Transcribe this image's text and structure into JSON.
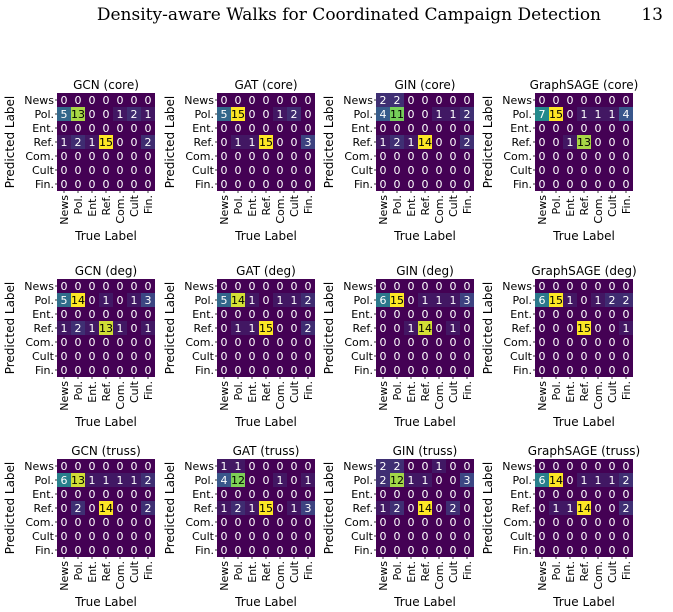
{
  "header": {
    "title": "Density-aware Walks for Coordinated Campaign Detection",
    "page_number": "13"
  },
  "chart_data": {
    "type": "heatmap",
    "layout": "3 rows x 4 columns of confusion matrices",
    "labels": [
      "News",
      "Pol.",
      "Ent.",
      "Ref.",
      "Com.",
      "Cult",
      "Fin."
    ],
    "xlabel": "True Label",
    "ylabel": "Predicted Label",
    "colormap": "viridis",
    "colors": {
      "low": "#440154",
      "mid_low": "#3b528b",
      "mid": "#21918c",
      "mid_high": "#5ec962",
      "high": "#fde725",
      "dark_text": "#000000",
      "light_text": "#ffffff"
    },
    "panels": [
      {
        "title": "GCN (core)",
        "matrix": [
          [
            0,
            0,
            0,
            0,
            0,
            0,
            0
          ],
          [
            5,
            13,
            0,
            0,
            1,
            2,
            1
          ],
          [
            0,
            0,
            0,
            0,
            0,
            0,
            0
          ],
          [
            1,
            2,
            1,
            15,
            0,
            0,
            2
          ],
          [
            0,
            0,
            0,
            0,
            0,
            0,
            0
          ],
          [
            0,
            0,
            0,
            0,
            0,
            0,
            0
          ],
          [
            0,
            0,
            0,
            0,
            0,
            0,
            0
          ]
        ]
      },
      {
        "title": "GAT (core)",
        "matrix": [
          [
            0,
            0,
            0,
            0,
            0,
            0,
            0
          ],
          [
            5,
            15,
            0,
            0,
            1,
            2,
            0
          ],
          [
            0,
            0,
            0,
            0,
            0,
            0,
            0
          ],
          [
            0,
            1,
            1,
            15,
            0,
            0,
            3
          ],
          [
            0,
            0,
            0,
            0,
            0,
            0,
            0
          ],
          [
            0,
            0,
            0,
            0,
            0,
            0,
            0
          ],
          [
            0,
            0,
            0,
            0,
            0,
            0,
            0
          ]
        ]
      },
      {
        "title": "GIN (core)",
        "matrix": [
          [
            2,
            2,
            0,
            0,
            0,
            0,
            0
          ],
          [
            4,
            11,
            0,
            0,
            1,
            1,
            2
          ],
          [
            0,
            0,
            0,
            0,
            0,
            0,
            0
          ],
          [
            1,
            2,
            1,
            14,
            0,
            0,
            2
          ],
          [
            0,
            0,
            0,
            0,
            0,
            0,
            0
          ],
          [
            0,
            0,
            0,
            0,
            0,
            0,
            0
          ],
          [
            0,
            0,
            0,
            0,
            0,
            0,
            0
          ]
        ]
      },
      {
        "title": "GraphSAGE (core)",
        "matrix": [
          [
            0,
            0,
            0,
            0,
            0,
            0,
            0
          ],
          [
            7,
            15,
            0,
            1,
            1,
            1,
            4
          ],
          [
            0,
            0,
            0,
            0,
            0,
            0,
            0
          ],
          [
            0,
            0,
            1,
            13,
            0,
            0,
            0
          ],
          [
            0,
            0,
            0,
            0,
            0,
            0,
            0
          ],
          [
            0,
            0,
            0,
            0,
            0,
            0,
            0
          ],
          [
            0,
            0,
            0,
            0,
            0,
            0,
            0
          ]
        ]
      },
      {
        "title": "GCN (deg)",
        "matrix": [
          [
            0,
            0,
            0,
            0,
            0,
            0,
            0
          ],
          [
            5,
            14,
            0,
            1,
            0,
            1,
            3
          ],
          [
            0,
            0,
            0,
            0,
            0,
            0,
            0
          ],
          [
            1,
            2,
            1,
            13,
            1,
            0,
            1
          ],
          [
            0,
            0,
            0,
            0,
            0,
            0,
            0
          ],
          [
            0,
            0,
            0,
            0,
            0,
            0,
            0
          ],
          [
            0,
            0,
            0,
            0,
            0,
            0,
            0
          ]
        ]
      },
      {
        "title": "GAT (deg)",
        "matrix": [
          [
            0,
            0,
            0,
            0,
            0,
            0,
            0
          ],
          [
            5,
            14,
            1,
            0,
            1,
            1,
            2
          ],
          [
            0,
            0,
            0,
            0,
            0,
            0,
            0
          ],
          [
            0,
            1,
            1,
            15,
            0,
            0,
            2
          ],
          [
            0,
            0,
            0,
            0,
            0,
            0,
            0
          ],
          [
            0,
            0,
            0,
            0,
            0,
            0,
            0
          ],
          [
            0,
            0,
            0,
            0,
            0,
            0,
            0
          ]
        ]
      },
      {
        "title": "GIN (deg)",
        "matrix": [
          [
            0,
            0,
            0,
            0,
            0,
            0,
            0
          ],
          [
            6,
            15,
            0,
            1,
            1,
            1,
            3
          ],
          [
            0,
            0,
            0,
            0,
            0,
            0,
            0
          ],
          [
            0,
            0,
            1,
            14,
            0,
            1,
            0
          ],
          [
            0,
            0,
            0,
            0,
            0,
            0,
            0
          ],
          [
            0,
            0,
            0,
            0,
            0,
            0,
            0
          ],
          [
            0,
            0,
            0,
            0,
            0,
            0,
            0
          ]
        ]
      },
      {
        "title": "GraphSAGE (deg)",
        "matrix": [
          [
            0,
            0,
            0,
            0,
            0,
            0,
            0
          ],
          [
            6,
            15,
            1,
            0,
            1,
            2,
            2
          ],
          [
            0,
            0,
            0,
            0,
            0,
            0,
            0
          ],
          [
            0,
            0,
            0,
            15,
            0,
            0,
            1
          ],
          [
            0,
            0,
            0,
            0,
            0,
            0,
            0
          ],
          [
            0,
            0,
            0,
            0,
            0,
            0,
            0
          ],
          [
            0,
            0,
            0,
            0,
            0,
            0,
            0
          ]
        ]
      },
      {
        "title": "GCN (truss)",
        "matrix": [
          [
            0,
            0,
            0,
            0,
            0,
            0,
            0
          ],
          [
            6,
            13,
            1,
            1,
            1,
            1,
            2
          ],
          [
            0,
            0,
            0,
            0,
            0,
            0,
            0
          ],
          [
            0,
            2,
            0,
            14,
            0,
            0,
            2
          ],
          [
            0,
            0,
            0,
            0,
            0,
            0,
            0
          ],
          [
            0,
            0,
            0,
            0,
            0,
            0,
            0
          ],
          [
            0,
            0,
            0,
            0,
            0,
            0,
            0
          ]
        ]
      },
      {
        "title": "GAT (truss)",
        "matrix": [
          [
            1,
            1,
            0,
            0,
            0,
            0,
            0
          ],
          [
            4,
            12,
            0,
            0,
            1,
            0,
            1
          ],
          [
            0,
            0,
            0,
            0,
            0,
            0,
            0
          ],
          [
            1,
            2,
            1,
            15,
            0,
            1,
            3
          ],
          [
            0,
            0,
            0,
            0,
            0,
            0,
            0
          ],
          [
            0,
            0,
            0,
            0,
            0,
            0,
            0
          ],
          [
            0,
            0,
            0,
            0,
            0,
            0,
            0
          ]
        ]
      },
      {
        "title": "GIN (truss)",
        "matrix": [
          [
            2,
            2,
            0,
            0,
            1,
            0,
            0
          ],
          [
            2,
            12,
            1,
            1,
            0,
            0,
            3
          ],
          [
            0,
            0,
            0,
            0,
            0,
            0,
            0
          ],
          [
            1,
            2,
            0,
            14,
            0,
            2,
            0
          ],
          [
            0,
            0,
            0,
            0,
            0,
            0,
            0
          ],
          [
            0,
            0,
            0,
            0,
            0,
            0,
            0
          ],
          [
            0,
            0,
            0,
            0,
            0,
            0,
            0
          ]
        ]
      },
      {
        "title": "GraphSAGE (truss)",
        "matrix": [
          [
            0,
            0,
            0,
            0,
            0,
            0,
            0
          ],
          [
            6,
            14,
            0,
            1,
            1,
            1,
            2
          ],
          [
            0,
            0,
            0,
            0,
            0,
            0,
            0
          ],
          [
            0,
            1,
            1,
            14,
            0,
            0,
            2
          ],
          [
            0,
            0,
            0,
            0,
            0,
            0,
            0
          ],
          [
            0,
            0,
            0,
            0,
            0,
            0,
            0
          ],
          [
            0,
            0,
            0,
            0,
            0,
            0,
            0
          ]
        ]
      }
    ]
  }
}
